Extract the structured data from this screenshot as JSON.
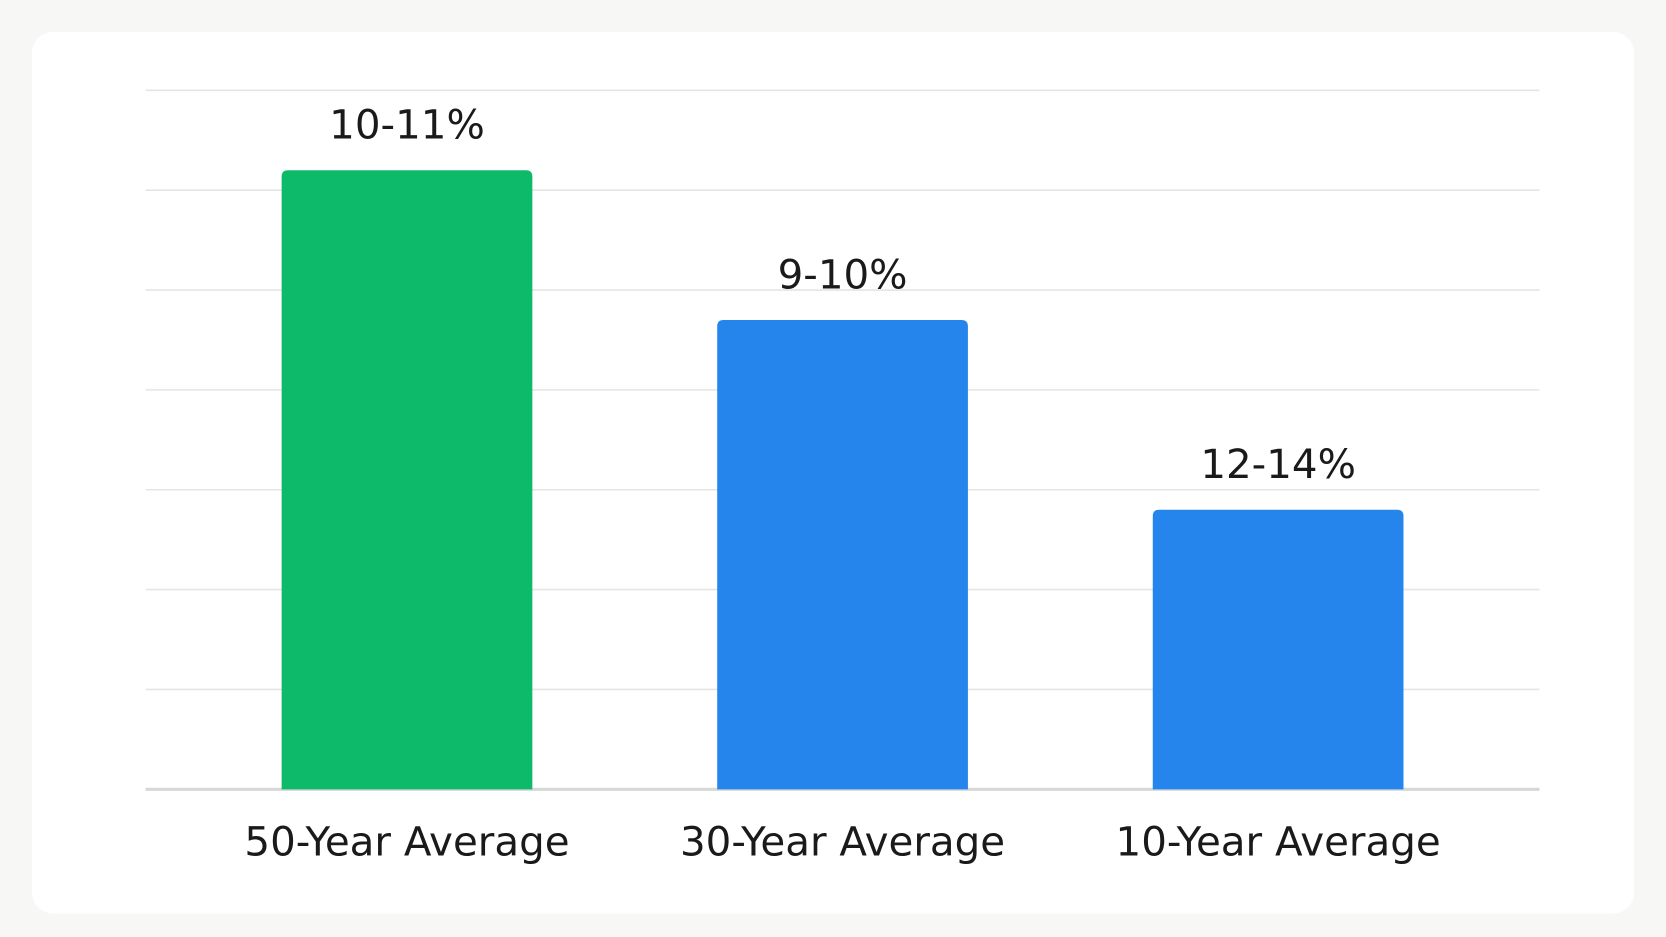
{
  "chart_data": {
    "type": "bar",
    "categories": [
      "50-Year Average",
      "30-Year Average",
      "10-Year Average"
    ],
    "values": [
      6.2,
      4.7,
      2.8
    ],
    "annotations": [
      "10-11%",
      "9-10%",
      "12-14%"
    ],
    "colors": [
      "#0dba6a",
      "#2585ec",
      "#2585ec"
    ],
    "ylim": [
      0,
      7
    ],
    "yticks": [
      0,
      1,
      2,
      3,
      4,
      5,
      6,
      7
    ],
    "grid": true
  }
}
